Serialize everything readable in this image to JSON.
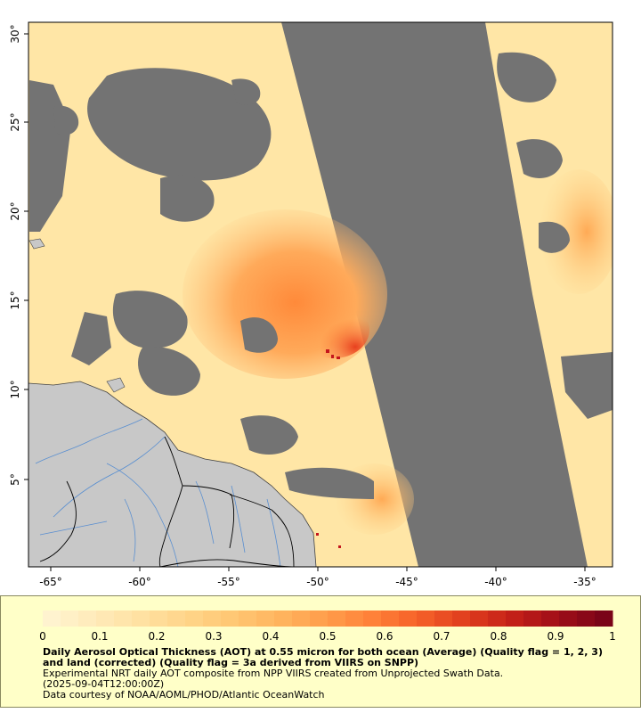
{
  "map": {
    "lon_ticks": [
      "-65°",
      "-60°",
      "-55°",
      "-50°",
      "-45°",
      "-40°",
      "-35°"
    ],
    "lat_ticks": [
      "5°",
      "10°",
      "15°",
      "20°",
      "25°",
      "30°"
    ],
    "colors": {
      "no_data": "#737373",
      "land": "#c8c8c8",
      "river": "#5a8fd0",
      "border": "#000000",
      "coast": "#444444"
    }
  },
  "legend": {
    "tick_labels": [
      "0",
      "0.1",
      "0.2",
      "0.3",
      "0.4",
      "0.5",
      "0.6",
      "0.7",
      "0.8",
      "0.9",
      "1"
    ],
    "range": [
      0,
      1
    ],
    "colors": [
      "#fff3cf",
      "#ffeab8",
      "#ffe0a0",
      "#ffd488",
      "#ffc672",
      "#ffb45e",
      "#ff9c4a",
      "#ff8038",
      "#f56028",
      "#e03e1e",
      "#c42018",
      "#a00e18",
      "#7a0418"
    ],
    "title": "Daily Aerosol Optical Thickness (AOT) at 0.55 micron for both ocean (Average) (Quality flag = 1, 2, 3) and land (corrected) (Quality flag = 3a derived from VIIRS on SNPP)",
    "line1": "Experimental NRT daily AOT composite from NPP VIIRS created from Unprojected Swath Data.",
    "line2": "(2025-09-04T12:00:00Z)",
    "credit": "Data courtesy of NOAA/AOML/PHOD/Atlantic OceanWatch"
  }
}
